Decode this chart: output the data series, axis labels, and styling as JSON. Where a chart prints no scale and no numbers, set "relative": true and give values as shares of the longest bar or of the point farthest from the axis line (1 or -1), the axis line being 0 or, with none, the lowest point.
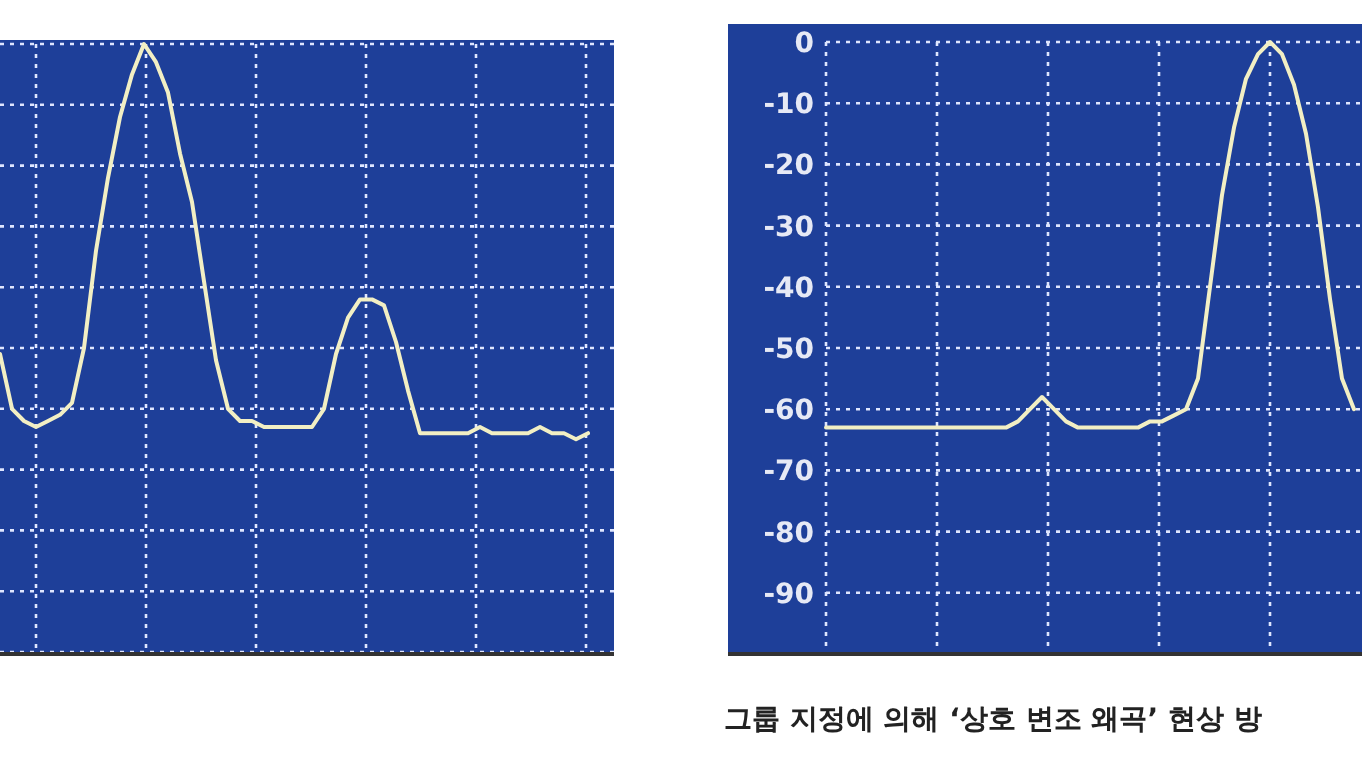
{
  "chart_data": [
    {
      "type": "line",
      "relative": true,
      "grid": true,
      "categories": [
        null,
        null,
        null,
        null,
        null,
        null,
        null,
        null,
        null,
        null,
        null,
        null,
        null,
        null,
        null,
        null,
        null,
        null,
        null,
        null,
        null,
        null,
        null,
        null,
        null,
        null,
        null,
        null,
        null,
        null,
        null,
        null,
        null,
        null,
        null,
        null,
        null,
        null,
        null,
        null,
        null,
        null,
        null,
        null,
        null,
        null,
        null,
        null,
        null,
        null
      ],
      "series": [
        {
          "color": "#f2efc4",
          "values": [
            0.49,
            0.4,
            0.38,
            0.37,
            0.38,
            0.39,
            0.41,
            0.5,
            0.66,
            0.78,
            0.88,
            0.95,
            1,
            0.97,
            0.92,
            0.82,
            0.74,
            0.61,
            0.48,
            0.4,
            0.38,
            0.38,
            0.37,
            0.37,
            0.37,
            0.37,
            0.37,
            0.4,
            0.49,
            0.55,
            0.58,
            0.58,
            0.57,
            0.51,
            0.43,
            0.36,
            0.36,
            0.36,
            0.36,
            0.36,
            0.37,
            0.36,
            0.36,
            0.36,
            0.36,
            0.37,
            0.36,
            0.36,
            0.35,
            0.36
          ]
        }
      ]
    },
    {
      "type": "line",
      "grid": true,
      "ylim": [
        -100,
        0
      ],
      "yticks": [
        0,
        -10,
        -20,
        -30,
        -40,
        -50,
        -60,
        -70,
        -80,
        -90,
        {
          "value": -100,
          "label": null
        }
      ],
      "categories": [
        null,
        null,
        null,
        null,
        null,
        null,
        null,
        null,
        null,
        null,
        null,
        null,
        null,
        null,
        null,
        null,
        null,
        null,
        null,
        null,
        null,
        null,
        null,
        null,
        null,
        null,
        null,
        null,
        null,
        null,
        null,
        null,
        null,
        null,
        null,
        null,
        null,
        null,
        null,
        null,
        null,
        null,
        null,
        null,
        null
      ],
      "series": [
        {
          "color": "#f2efc4",
          "values": [
            -63,
            -63,
            -63,
            -63,
            -63,
            -63,
            -63,
            -63,
            -63,
            -63,
            -63,
            -63,
            -63,
            -63,
            -63,
            -63,
            -62,
            -60,
            -58,
            -60,
            -62,
            -63,
            -63,
            -63,
            -63,
            -63,
            -63,
            -62,
            -62,
            -61,
            -60,
            -55,
            -40,
            -25,
            -14,
            -6,
            -2,
            0,
            -2,
            -7,
            -15,
            -27,
            -42,
            -55,
            -60
          ]
        }
      ],
      "annotations": [
        "그룹 지정에 의해 ‘상호 변조 왜곡’ 현상 방"
      ]
    }
  ]
}
